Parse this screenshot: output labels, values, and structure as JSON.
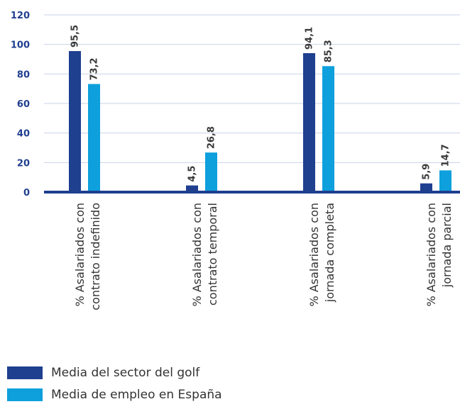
{
  "chart_data": {
    "type": "bar",
    "categories": [
      [
        "% Asalariados con",
        "contrato indefinido"
      ],
      [
        "% Asalariados con",
        "contrato temporal"
      ],
      [
        "% Asalariados con",
        "jornada completa"
      ],
      [
        "% Asalariados con",
        "jornada parcial"
      ]
    ],
    "series": [
      {
        "name": "Media del sector del golf",
        "values": [
          95.5,
          4.5,
          94.1,
          5.9
        ],
        "labels": [
          "95,5",
          "4,5",
          "94,1",
          "5,9"
        ],
        "color": "#1f3f8f"
      },
      {
        "name": "Media de empleo en España",
        "values": [
          73.2,
          26.8,
          85.3,
          14.7
        ],
        "labels": [
          "73,2",
          "26,8",
          "85,3",
          "14,7"
        ],
        "color": "#0ea0dc"
      }
    ],
    "ylim": [
      0,
      120
    ],
    "yticks": [
      "0",
      "20",
      "40",
      "60",
      "80",
      "100",
      "120"
    ],
    "grid": true,
    "legend_position": "bottom-left",
    "axis_color": "#1f3f8f",
    "grid_color": "#c9d3e6"
  }
}
